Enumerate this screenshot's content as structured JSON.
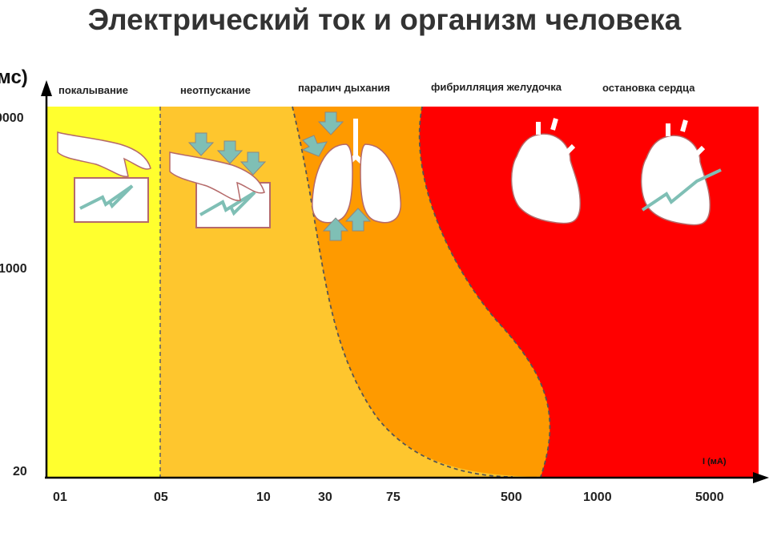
{
  "title": "Электрический ток и организм человека",
  "chart_data": {
    "type": "area",
    "title": "Электрический ток и организм человека",
    "xlabel": "I (мА)",
    "ylabel": "мс)",
    "x_ticks": [
      "01",
      "05",
      "10",
      "30",
      "75",
      "500",
      "1000",
      "5000"
    ],
    "y_ticks": [
      "20",
      "1000",
      "0000"
    ],
    "zones": [
      {
        "label": "покалывание",
        "color": "#ffff2e"
      },
      {
        "label": "неотпускание",
        "color": "#fec62e"
      },
      {
        "label": "паралич дыхания",
        "color": "#fe9a00"
      },
      {
        "label": "фибрилляция желудочка",
        "color": "#ff0000"
      },
      {
        "label": "остановка сердца",
        "color": "#ff0000"
      }
    ],
    "grid": false,
    "legend": "none"
  },
  "icons": [
    "hand-tingle-icon",
    "hand-grip-icon",
    "lungs-icon",
    "heart-icon",
    "heart-stop-icon"
  ]
}
